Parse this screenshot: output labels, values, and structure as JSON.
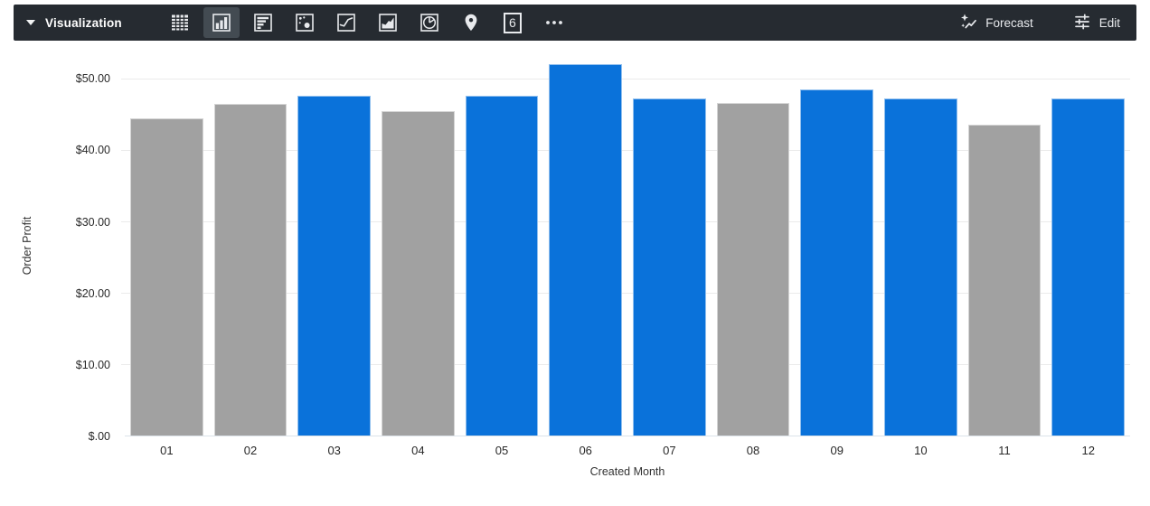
{
  "toolbar": {
    "visualization_label": "Visualization",
    "forecast_label": "Forecast",
    "edit_label": "Edit",
    "single_value_glyph": "6",
    "viz_types": [
      "table",
      "column",
      "bar",
      "scatter",
      "line",
      "area",
      "pie",
      "map",
      "single-value",
      "more"
    ],
    "selected_viz": "column",
    "colors": {
      "background": "#262b31",
      "selected_tile": "#434b52"
    }
  },
  "chart_data": {
    "type": "bar",
    "title": "",
    "xlabel": "Created Month",
    "ylabel": "Order Profit",
    "categories": [
      "01",
      "02",
      "03",
      "04",
      "05",
      "06",
      "07",
      "08",
      "09",
      "10",
      "11",
      "12"
    ],
    "values": [
      44.5,
      46.5,
      47.6,
      45.5,
      47.6,
      52.0,
      47.3,
      46.6,
      48.5,
      47.3,
      43.6,
      47.3
    ],
    "bar_colors": [
      "gray",
      "gray",
      "blue",
      "gray",
      "blue",
      "blue",
      "blue",
      "gray",
      "blue",
      "blue",
      "gray",
      "blue"
    ],
    "palette": {
      "blue": "#0a72da",
      "gray": "#a1a1a1"
    },
    "y_ticks": [
      {
        "label": "$50.00",
        "value": 50
      },
      {
        "label": "$40.00",
        "value": 40
      },
      {
        "label": "$30.00",
        "value": 30
      },
      {
        "label": "$20.00",
        "value": 20
      },
      {
        "label": "$10.00",
        "value": 10
      },
      {
        "label": "$.00",
        "value": 0
      }
    ],
    "ylim": [
      0,
      53.2
    ],
    "grid": true,
    "legend": "none"
  }
}
